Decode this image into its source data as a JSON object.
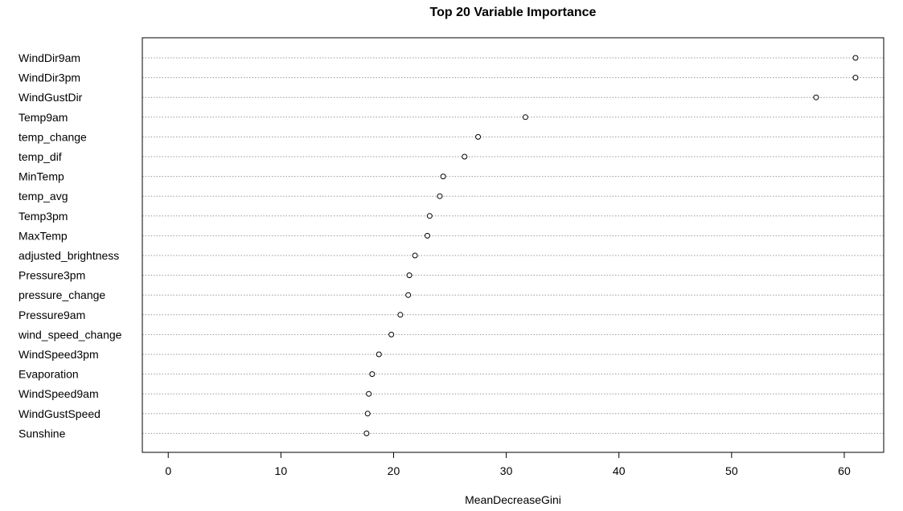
{
  "chart_data": {
    "type": "scatter",
    "title": "Top 20 Variable Importance",
    "xlabel": "MeanDecreaseGini",
    "ylabel": "",
    "xlim": [
      -2.3,
      63.5
    ],
    "x_ticks": [
      0,
      10,
      20,
      30,
      40,
      50,
      60
    ],
    "grid": "horizontal dotted",
    "legend": "none",
    "point_style": "open circle",
    "categories": [
      "WindDir9am",
      "WindDir3pm",
      "WindGustDir",
      "Temp9am",
      "temp_change",
      "temp_dif",
      "MinTemp",
      "temp_avg",
      "Temp3pm",
      "MaxTemp",
      "adjusted_brightness",
      "Pressure3pm",
      "pressure_change",
      "Pressure9am",
      "wind_speed_change",
      "WindSpeed3pm",
      "Evaporation",
      "WindSpeed9am",
      "WindGustSpeed",
      "Sunshine"
    ],
    "values": [
      61.0,
      61.0,
      57.5,
      31.7,
      27.5,
      26.3,
      24.4,
      24.1,
      23.2,
      23.0,
      21.9,
      21.4,
      21.3,
      20.6,
      19.8,
      18.7,
      18.1,
      17.8,
      17.7,
      17.6
    ],
    "colors": {
      "point_stroke": "#000000",
      "grid": "#9a9a9a",
      "axis": "#000000",
      "text": "#000000"
    }
  }
}
